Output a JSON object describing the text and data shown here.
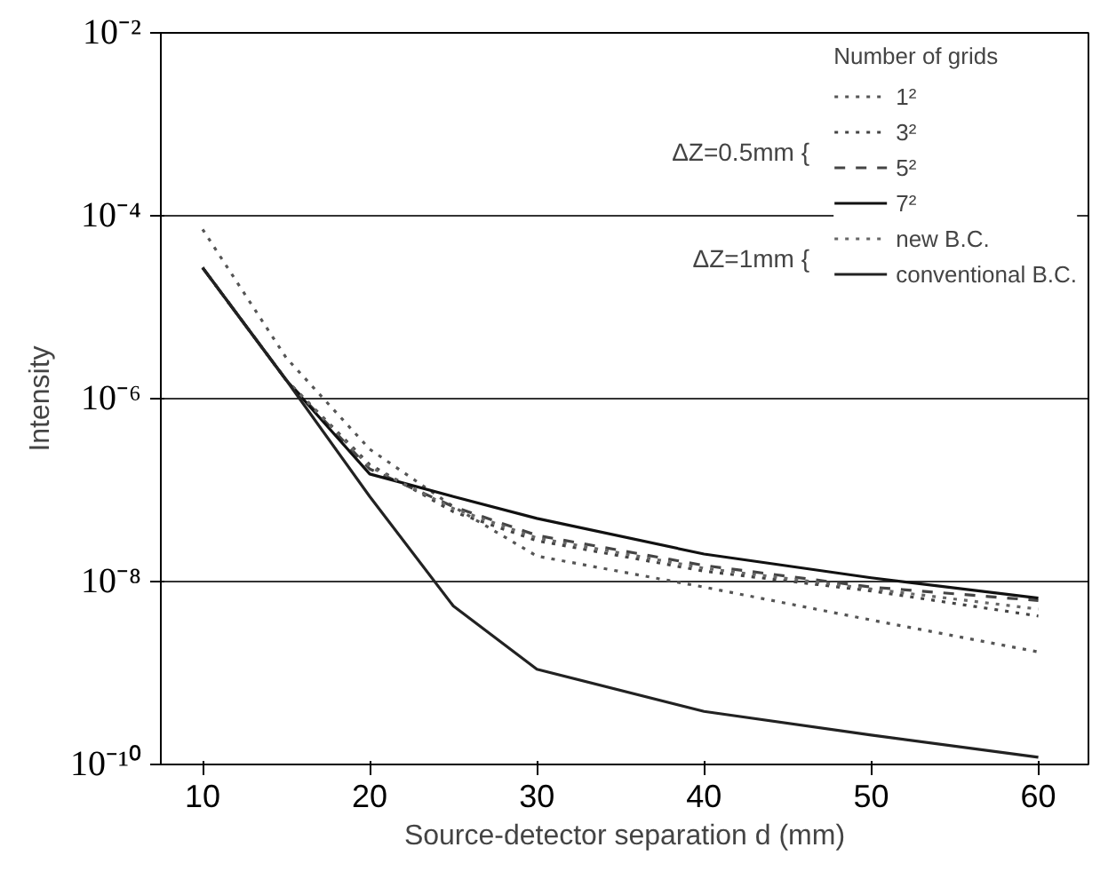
{
  "chart_data": {
    "type": "line",
    "xlabel": "Source-detector separation d (mm)",
    "ylabel": "Intensity",
    "legend_title": "Number of grids",
    "x": [
      10,
      15,
      20,
      25,
      30,
      40,
      50,
      60
    ],
    "series": [
      {
        "name": "1²",
        "color": "#555555",
        "line_style": "dotted",
        "values": [
          7.1e-05,
          2.8e-06,
          2.8e-07,
          6.6e-08,
          1.9e-08,
          8.7e-09,
          3.8e-09,
          1.7e-09
        ]
      },
      {
        "name": "3²",
        "color": "#444444",
        "line_style": "dotted",
        "values": [
          2.7e-05,
          1.6e-06,
          1.9e-07,
          5.8e-08,
          2.8e-08,
          1.3e-08,
          7.9e-09,
          4.2e-09
        ]
      },
      {
        "name": "5²",
        "color": "#444444",
        "line_style": "dashed",
        "values": [
          2.7e-05,
          1.6e-06,
          1.7e-07,
          6.6e-08,
          3.2e-08,
          1.5e-08,
          8.7e-09,
          6.2e-09
        ]
      },
      {
        "name": "7²",
        "color": "#111111",
        "line_style": "solid",
        "values": [
          2.7e-05,
          1.6e-06,
          1.5e-07,
          8.5e-08,
          4.9e-08,
          2e-08,
          1.1e-08,
          6.6e-09
        ]
      },
      {
        "name": "new B.C.",
        "color": "#666666",
        "line_style": "dotted",
        "values": [
          2.7e-05,
          1.6e-06,
          1.8e-07,
          6.3e-08,
          3e-08,
          1.4e-08,
          8.3e-09,
          5e-09
        ]
      },
      {
        "name": "conventional B.C.",
        "color": "#222222",
        "line_style": "solid",
        "values": [
          2.7e-05,
          1.6e-06,
          8.5e-08,
          5.4e-09,
          1.1e-09,
          3.8e-10,
          2.1e-10,
          1.2e-10
        ]
      }
    ],
    "annotations": [
      "ΔZ=0.5mm {",
      "ΔZ=1mm {"
    ],
    "xlim": [
      7.5,
      63
    ],
    "ylim": [
      1e-10,
      0.01
    ],
    "xticks": [
      10,
      20,
      30,
      40,
      50,
      60
    ],
    "yticks": [
      {
        "value": 1e-10,
        "label": "10⁻¹⁰"
      },
      {
        "value": 1e-08,
        "label": "10⁻⁸"
      },
      {
        "value": 1e-06,
        "label": "10⁻⁶"
      },
      {
        "value": 0.0001,
        "label": "10⁻⁴"
      },
      {
        "value": 0.01,
        "label": "10⁻²"
      }
    ],
    "log": true,
    "grid": "y",
    "legend": "top right",
    "marker": "none"
  }
}
